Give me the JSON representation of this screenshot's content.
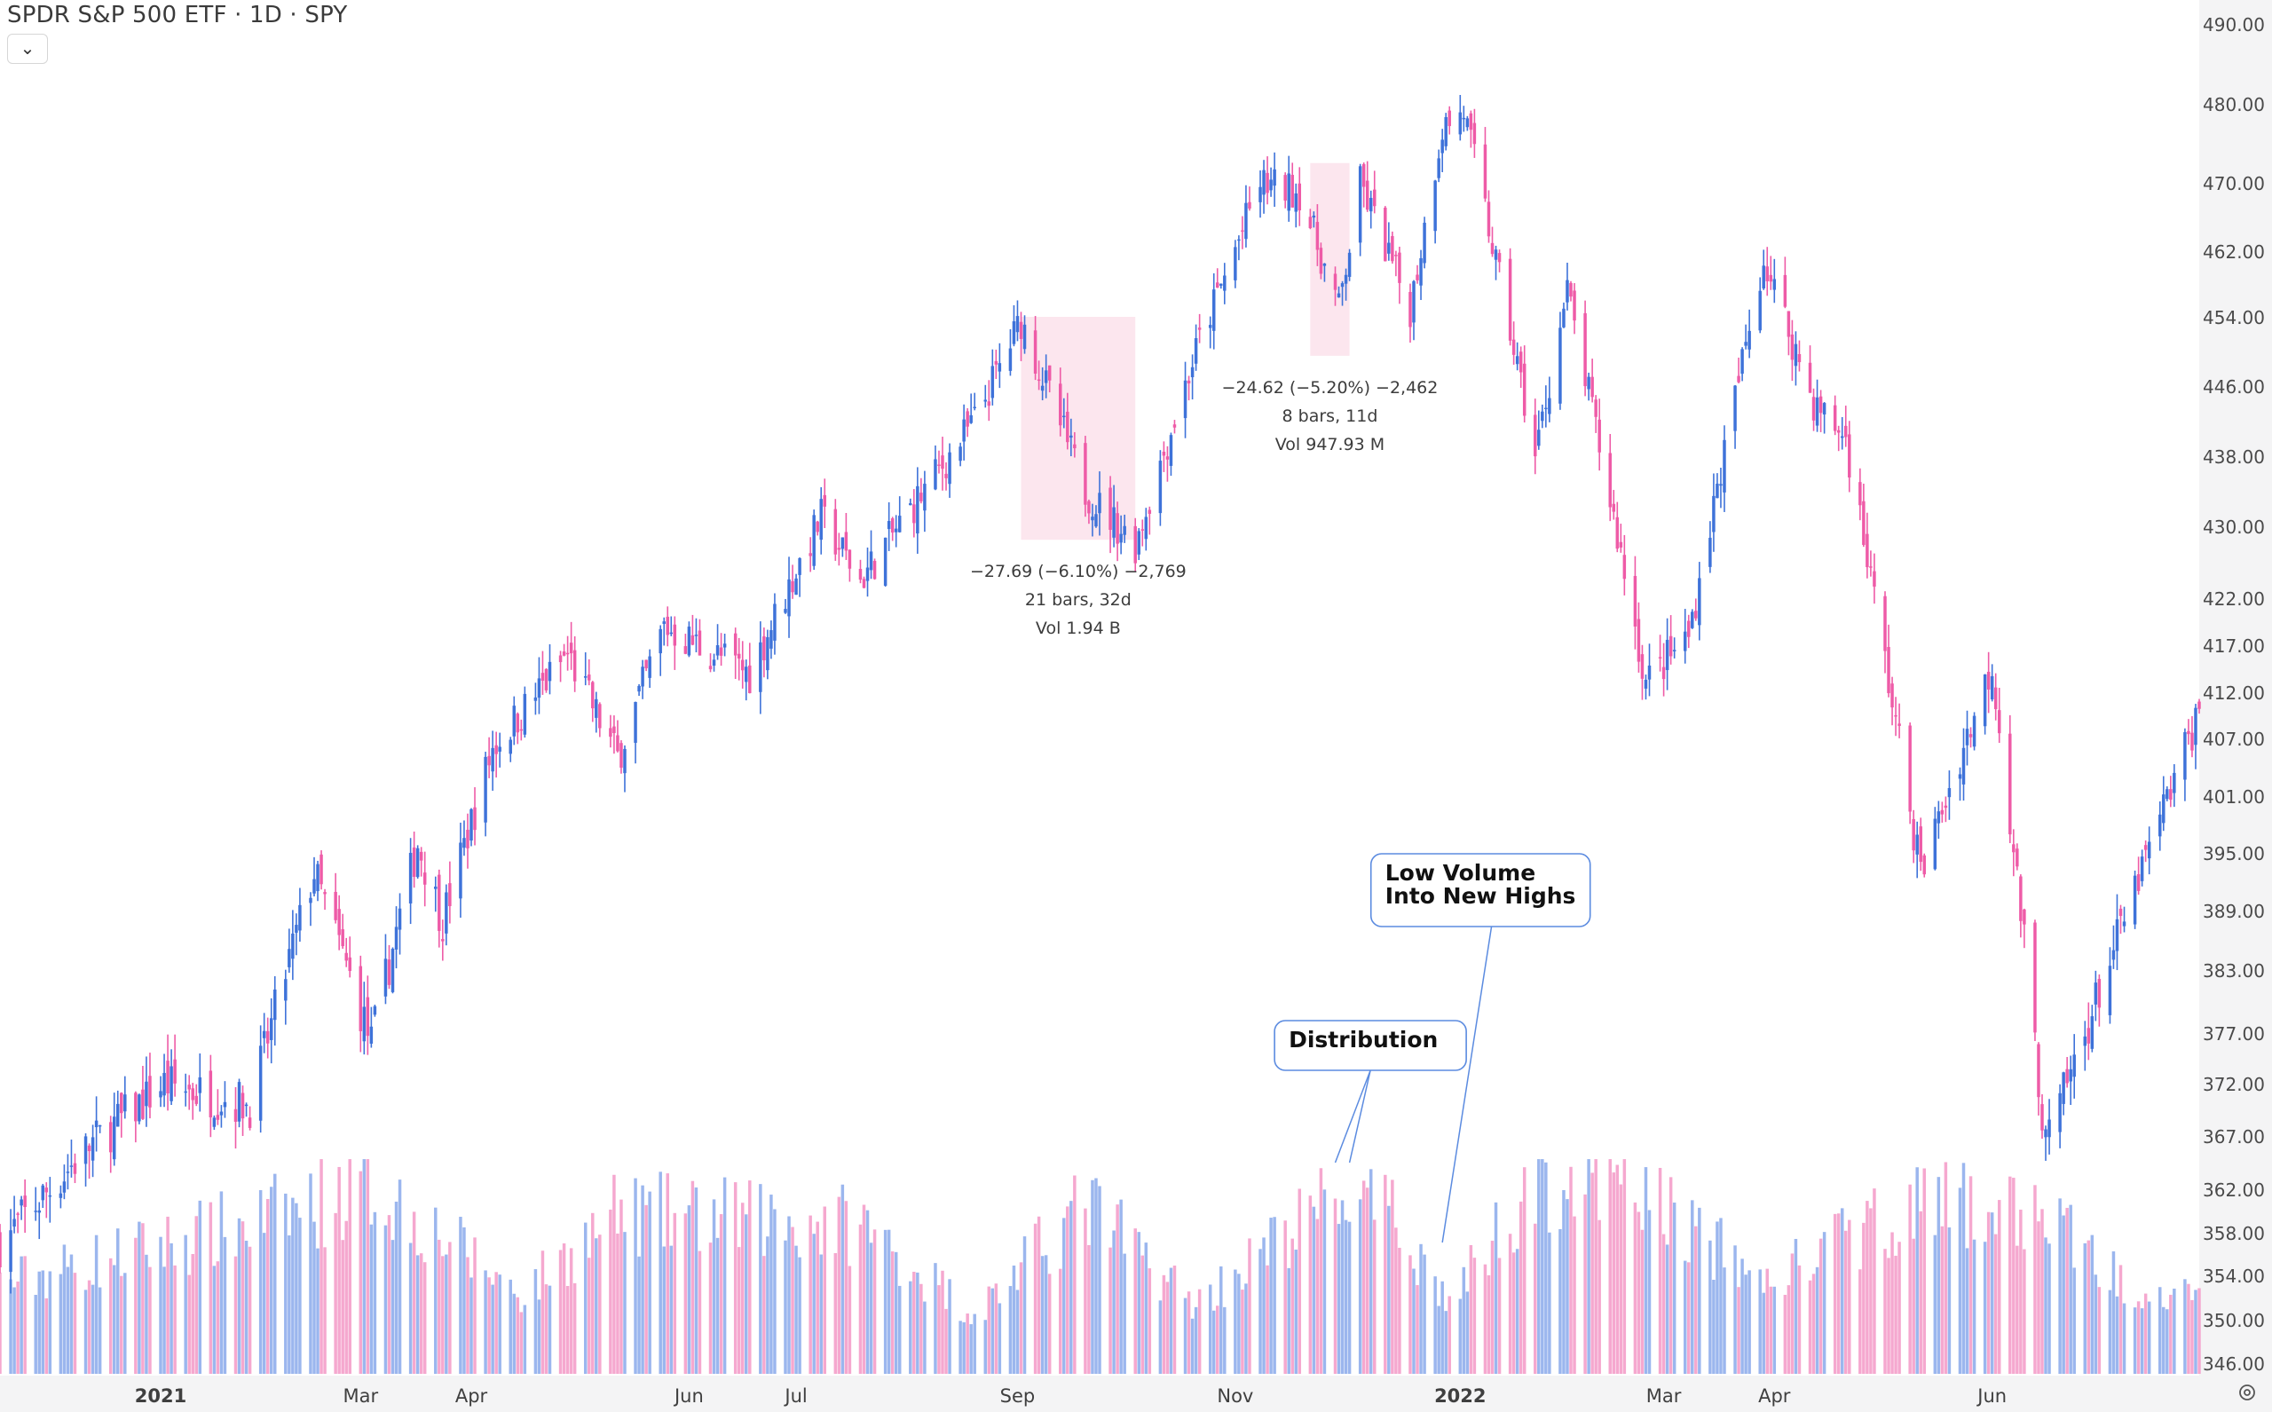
{
  "header": {
    "title": "SPDR S&P 500 ETF · 1D · SPY",
    "dropdown_icon": "chevron-down-icon",
    "settings_icon": "settings-icon"
  },
  "colors": {
    "up": "#3E72D9",
    "down": "#EE5BA7",
    "up_volume": "#9BB6EE",
    "down_volume": "#F5A8CF",
    "selection_box": "#FCE6EE",
    "axis_bg": "#F4F4F5",
    "callout_border": "#5B8BE0"
  },
  "chart_data": {
    "type": "candlestick",
    "title": "SPDR S&P 500 ETF · 1D · SPY",
    "xlabel": "",
    "ylabel": "",
    "y_axis_ticks": [
      "490.00",
      "480.00",
      "470.00",
      "462.00",
      "454.00",
      "446.00",
      "438.00",
      "430.00",
      "422.00",
      "417.00",
      "412.00",
      "407.00",
      "401.00",
      "395.00",
      "389.00",
      "383.00",
      "377.00",
      "372.00",
      "367.00",
      "362.00",
      "358.00",
      "354.00",
      "350.00",
      "346.00"
    ],
    "ylim": [
      346,
      490
    ],
    "x_axis_ticks": [
      "2021",
      "Mar",
      "Apr",
      "Jun",
      "Jul",
      "Sep",
      "Nov",
      "2022",
      "Mar",
      "Apr",
      "Jun"
    ],
    "grid": false,
    "legend": "none",
    "price_path": [
      {
        "date": "2020-11-20",
        "close": 357
      },
      {
        "date": "2020-12-15",
        "close": 366
      },
      {
        "date": "2021-01-05",
        "close": 372
      },
      {
        "date": "2021-01-29",
        "close": 370
      },
      {
        "date": "2021-02-16",
        "close": 393
      },
      {
        "date": "2021-03-04",
        "close": 376
      },
      {
        "date": "2021-03-17",
        "close": 396
      },
      {
        "date": "2021-03-24",
        "close": 388
      },
      {
        "date": "2021-04-07",
        "close": 406
      },
      {
        "date": "2021-04-28",
        "close": 416
      },
      {
        "date": "2021-05-12",
        "close": 405
      },
      {
        "date": "2021-05-25",
        "close": 419
      },
      {
        "date": "2021-06-18",
        "close": 414
      },
      {
        "date": "2021-07-08",
        "close": 431
      },
      {
        "date": "2021-07-19",
        "close": 424
      },
      {
        "date": "2021-08-20",
        "close": 442
      },
      {
        "date": "2021-09-02",
        "close": 453.6
      },
      {
        "date": "2021-09-20",
        "close": 434
      },
      {
        "date": "2021-10-04",
        "close": 428
      },
      {
        "date": "2021-10-21",
        "close": 450
      },
      {
        "date": "2021-11-08",
        "close": 470
      },
      {
        "date": "2021-11-19",
        "close": 469
      },
      {
        "date": "2021-11-30",
        "close": 455
      },
      {
        "date": "2021-12-06",
        "close": 470
      },
      {
        "date": "2021-12-20",
        "close": 455
      },
      {
        "date": "2021-12-29",
        "close": 477
      },
      {
        "date": "2022-01-04",
        "close": 479
      },
      {
        "date": "2022-01-24",
        "close": 438
      },
      {
        "date": "2022-02-02",
        "close": 457
      },
      {
        "date": "2022-02-24",
        "close": 413
      },
      {
        "date": "2022-03-08",
        "close": 418
      },
      {
        "date": "2022-03-29",
        "close": 461
      },
      {
        "date": "2022-04-12",
        "close": 444
      },
      {
        "date": "2022-04-21",
        "close": 440
      },
      {
        "date": "2022-05-12",
        "close": 393
      },
      {
        "date": "2022-06-01",
        "close": 415
      },
      {
        "date": "2022-06-16",
        "close": 366
      },
      {
        "date": "2022-07-08",
        "close": 388
      },
      {
        "date": "2022-07-29",
        "close": 410
      }
    ],
    "volume_path": [
      {
        "date": "2020-11-20",
        "volume": 0.45
      },
      {
        "date": "2021-01-29",
        "volume": 0.75
      },
      {
        "date": "2021-03-04",
        "volume": 0.95
      },
      {
        "date": "2021-04-15",
        "volume": 0.4
      },
      {
        "date": "2021-05-12",
        "volume": 0.8
      },
      {
        "date": "2021-07-19",
        "volume": 0.75
      },
      {
        "date": "2021-08-20",
        "volume": 0.3
      },
      {
        "date": "2021-09-20",
        "volume": 0.85
      },
      {
        "date": "2021-10-21",
        "volume": 0.35
      },
      {
        "date": "2021-11-30",
        "volume": 0.9
      },
      {
        "date": "2021-12-17",
        "volume": 0.75
      },
      {
        "date": "2021-12-31",
        "volume": 0.35
      },
      {
        "date": "2022-01-24",
        "volume": 1.0
      },
      {
        "date": "2022-02-24",
        "volume": 0.9
      },
      {
        "date": "2022-03-29",
        "volume": 0.45
      },
      {
        "date": "2022-05-09",
        "volume": 0.85
      },
      {
        "date": "2022-06-16",
        "volume": 0.8
      },
      {
        "date": "2022-07-08",
        "volume": 0.45
      },
      {
        "date": "2022-07-29",
        "volume": 0.45
      }
    ],
    "measurements": [
      {
        "start": "2021-09-02",
        "end": "2021-10-04",
        "high": 454,
        "low": 428.5,
        "line1": "−27.69 (−6.10%) −2,769",
        "line2": "21 bars, 32d",
        "line3": "Vol 1.94 B"
      },
      {
        "start": "2021-11-22",
        "end": "2021-12-03",
        "high": 472.5,
        "low": 449.5,
        "line1": "−24.62 (−5.20%) −2,462",
        "line2": "8 bars, 11d",
        "line3": "Vol 947.93 M"
      }
    ],
    "annotations": [
      {
        "text": "Distribution",
        "box_date": "2021-11-12",
        "pointer_dates": [
          "2021-11-29",
          "2021-12-03"
        ]
      },
      {
        "text": "Low Volume\nInto New Highs",
        "box_date": "2021-12-09",
        "pointer_dates": [
          "2021-12-29"
        ]
      }
    ]
  }
}
